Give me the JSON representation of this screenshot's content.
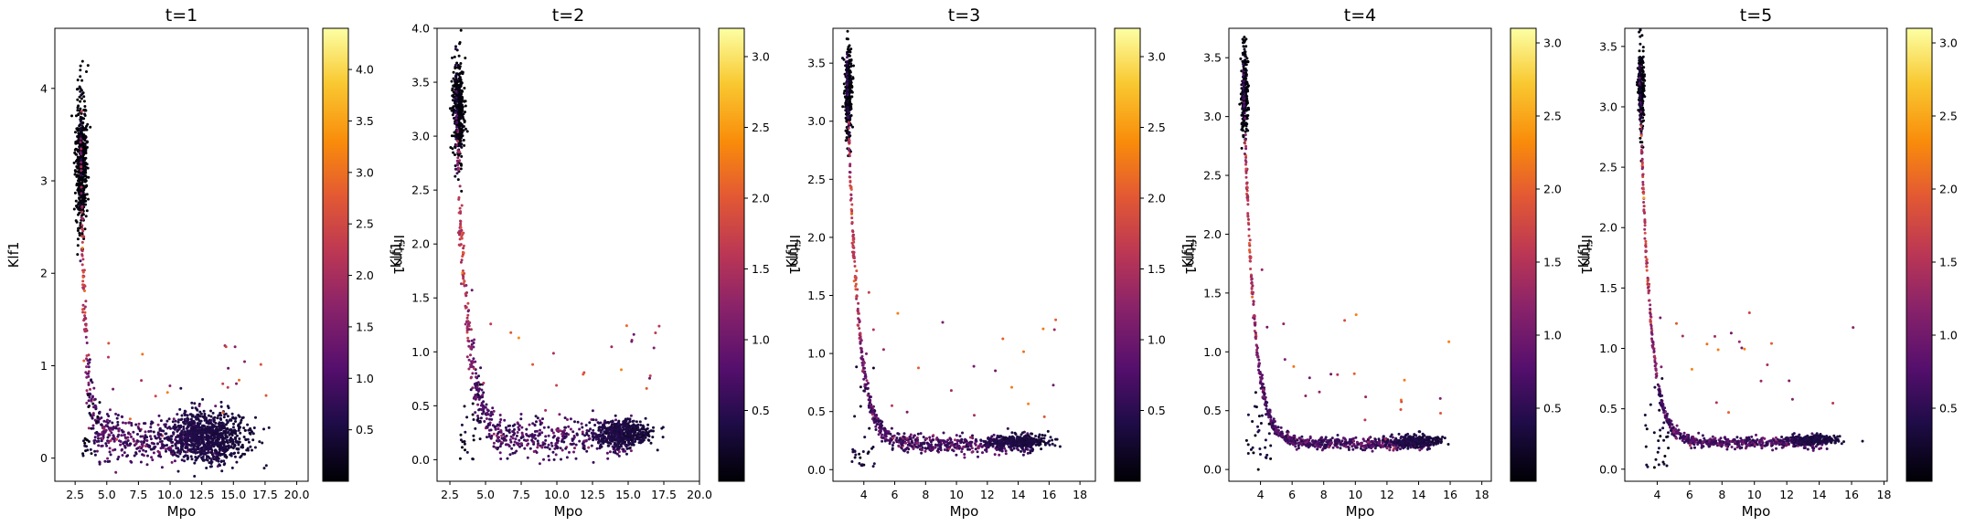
{
  "chart_data": [
    {
      "type": "scatter",
      "title": "t=1",
      "xlabel": "Mpo",
      "ylabel": "Klf1",
      "colorbar_label": "Ifitm1",
      "colormap": "inferno",
      "xlim": [
        0.9,
        20.9
      ],
      "ylim": [
        -0.25,
        4.65
      ],
      "xticks": [
        2.5,
        5.0,
        7.5,
        10.0,
        12.5,
        15.0,
        17.5,
        20.0
      ],
      "xticklabels": [
        "2.5",
        "5.0",
        "7.5",
        "10.0",
        "12.5",
        "15.0",
        "17.5",
        "20.0"
      ],
      "yticks": [
        0,
        1,
        2,
        3,
        4
      ],
      "yticklabels": [
        "0",
        "1",
        "2",
        "3",
        "4"
      ],
      "clim": [
        0.0,
        4.4
      ],
      "cbticks": [
        0.5,
        1.0,
        1.5,
        2.0,
        2.5,
        3.0,
        3.5,
        4.0
      ],
      "cbticklabels": [
        "0.5",
        "1.0",
        "1.5",
        "2.0",
        "2.5",
        "3.0",
        "3.5",
        "4.0"
      ],
      "n_points": 1900,
      "seed": 11,
      "trend": {
        "x0": 2.9,
        "a": 3.35,
        "b": 2.4,
        "c": 0.2,
        "spread": 0.28
      },
      "cluster": {
        "center": [
          13.0,
          0.22
        ],
        "sx": 2.6,
        "sy": 0.14,
        "n": 850
      },
      "top_cluster": {
        "center": [
          3.0,
          3.2
        ],
        "sx": 0.22,
        "sy": 0.35,
        "n": 480
      },
      "grid": false,
      "legend": "none"
    },
    {
      "type": "scatter",
      "title": "t=2",
      "xlabel": "Mpo",
      "ylabel": "Klf1",
      "colorbar_label": "Ifitm1",
      "colormap": "inferno",
      "xlim": [
        1.6,
        20.0
      ],
      "ylim": [
        -0.2,
        4.0
      ],
      "xticks": [
        2.5,
        5.0,
        7.5,
        10.0,
        12.5,
        15.0,
        17.5,
        20.0
      ],
      "xticklabels": [
        "2.5",
        "5.0",
        "7.5",
        "10.0",
        "12.5",
        "15.0",
        "17.5",
        "20.0"
      ],
      "yticks": [
        0.0,
        0.5,
        1.0,
        1.5,
        2.0,
        2.5,
        3.0,
        3.5,
        4.0
      ],
      "yticklabels": [
        "0.0",
        "0.5",
        "1.0",
        "1.5",
        "2.0",
        "2.5",
        "3.0",
        "3.5",
        "4.0"
      ],
      "clim": [
        0.0,
        3.2
      ],
      "cbticks": [
        0.5,
        1.0,
        1.5,
        2.0,
        2.5,
        3.0
      ],
      "cbticklabels": [
        "0.5",
        "1.0",
        "1.5",
        "2.0",
        "2.5",
        "3.0"
      ],
      "n_points": 1500,
      "seed": 22,
      "trend": {
        "x0": 2.9,
        "a": 3.2,
        "b": 1.3,
        "c": 0.2,
        "spread": 0.2
      },
      "cluster": {
        "center": [
          14.5,
          0.24
        ],
        "sx": 1.7,
        "sy": 0.06,
        "n": 500
      },
      "top_cluster": {
        "center": [
          3.1,
          3.25
        ],
        "sx": 0.2,
        "sy": 0.22,
        "n": 380
      },
      "grid": false,
      "legend": "none"
    },
    {
      "type": "scatter",
      "title": "t=3",
      "xlabel": "Mpo",
      "ylabel": "Klf1",
      "colorbar_label": "Ifitm1",
      "colormap": "inferno",
      "xlim": [
        2.0,
        19.0
      ],
      "ylim": [
        -0.1,
        3.8
      ],
      "xticks": [
        4,
        6,
        8,
        10,
        12,
        14,
        16,
        18
      ],
      "xticklabels": [
        "4",
        "6",
        "8",
        "10",
        "12",
        "14",
        "16",
        "18"
      ],
      "yticks": [
        0.0,
        0.5,
        1.0,
        1.5,
        2.0,
        2.5,
        3.0,
        3.5
      ],
      "yticklabels": [
        "0.0",
        "0.5",
        "1.0",
        "1.5",
        "2.0",
        "2.5",
        "3.0",
        "3.5"
      ],
      "clim": [
        0.0,
        3.2
      ],
      "cbticks": [
        0.5,
        1.0,
        1.5,
        2.0,
        2.5,
        3.0
      ],
      "cbticklabels": [
        "0.5",
        "1.0",
        "1.5",
        "2.0",
        "2.5",
        "3.0"
      ],
      "n_points": 1300,
      "seed": 33,
      "trend": {
        "x0": 2.9,
        "a": 3.2,
        "b": 1.45,
        "c": 0.22,
        "spread": 0.08
      },
      "cluster": {
        "center": [
          14.0,
          0.24
        ],
        "sx": 1.6,
        "sy": 0.03,
        "n": 300
      },
      "top_cluster": {
        "center": [
          3.0,
          3.25
        ],
        "sx": 0.12,
        "sy": 0.2,
        "n": 260
      },
      "grid": false,
      "legend": "none"
    },
    {
      "type": "scatter",
      "title": "t=4",
      "xlabel": "Mpo",
      "ylabel": "Klf1",
      "colorbar_label": "Ifitm1",
      "colormap": "inferno",
      "xlim": [
        2.0,
        18.6
      ],
      "ylim": [
        -0.1,
        3.75
      ],
      "xticks": [
        4,
        6,
        8,
        10,
        12,
        14,
        16,
        18
      ],
      "xticklabels": [
        "4",
        "6",
        "8",
        "10",
        "12",
        "14",
        "16",
        "18"
      ],
      "yticks": [
        0.0,
        0.5,
        1.0,
        1.5,
        2.0,
        2.5,
        3.0,
        3.5
      ],
      "yticklabels": [
        "0.0",
        "0.5",
        "1.0",
        "1.5",
        "2.0",
        "2.5",
        "3.0",
        "3.5"
      ],
      "clim": [
        0.0,
        3.1
      ],
      "cbticks": [
        0.5,
        1.0,
        1.5,
        2.0,
        2.5,
        3.0
      ],
      "cbticklabels": [
        "0.5",
        "1.0",
        "1.5",
        "2.0",
        "2.5",
        "3.0"
      ],
      "n_points": 1200,
      "seed": 44,
      "trend": {
        "x0": 2.9,
        "a": 3.2,
        "b": 1.55,
        "c": 0.22,
        "spread": 0.06
      },
      "cluster": {
        "center": [
          13.8,
          0.24
        ],
        "sx": 1.4,
        "sy": 0.025,
        "n": 240
      },
      "top_cluster": {
        "center": [
          3.0,
          3.2
        ],
        "sx": 0.1,
        "sy": 0.2,
        "n": 220
      },
      "grid": false,
      "legend": "none"
    },
    {
      "type": "scatter",
      "title": "t=5",
      "xlabel": "Mpo",
      "ylabel": "Klf1",
      "colorbar_label": "Ifitm1",
      "colormap": "inferno",
      "xlim": [
        2.0,
        18.2
      ],
      "ylim": [
        -0.1,
        3.65
      ],
      "xticks": [
        4,
        6,
        8,
        10,
        12,
        14,
        16,
        18
      ],
      "xticklabels": [
        "4",
        "6",
        "8",
        "10",
        "12",
        "14",
        "16",
        "18"
      ],
      "yticks": [
        0.0,
        0.5,
        1.0,
        1.5,
        2.0,
        2.5,
        3.0,
        3.5
      ],
      "yticklabels": [
        "0.0",
        "0.5",
        "1.0",
        "1.5",
        "2.0",
        "2.5",
        "3.0",
        "3.5"
      ],
      "clim": [
        0.0,
        3.1
      ],
      "cbticks": [
        0.5,
        1.0,
        1.5,
        2.0,
        2.5,
        3.0
      ],
      "cbticklabels": [
        "0.5",
        "1.0",
        "1.5",
        "2.0",
        "2.5",
        "3.0"
      ],
      "n_points": 1150,
      "seed": 55,
      "trend": {
        "x0": 2.9,
        "a": 3.1,
        "b": 1.6,
        "c": 0.22,
        "spread": 0.05
      },
      "cluster": {
        "center": [
          13.6,
          0.24
        ],
        "sx": 1.3,
        "sy": 0.02,
        "n": 220
      },
      "top_cluster": {
        "center": [
          3.0,
          3.15
        ],
        "sx": 0.1,
        "sy": 0.2,
        "n": 200
      },
      "grid": false,
      "legend": "none"
    }
  ]
}
